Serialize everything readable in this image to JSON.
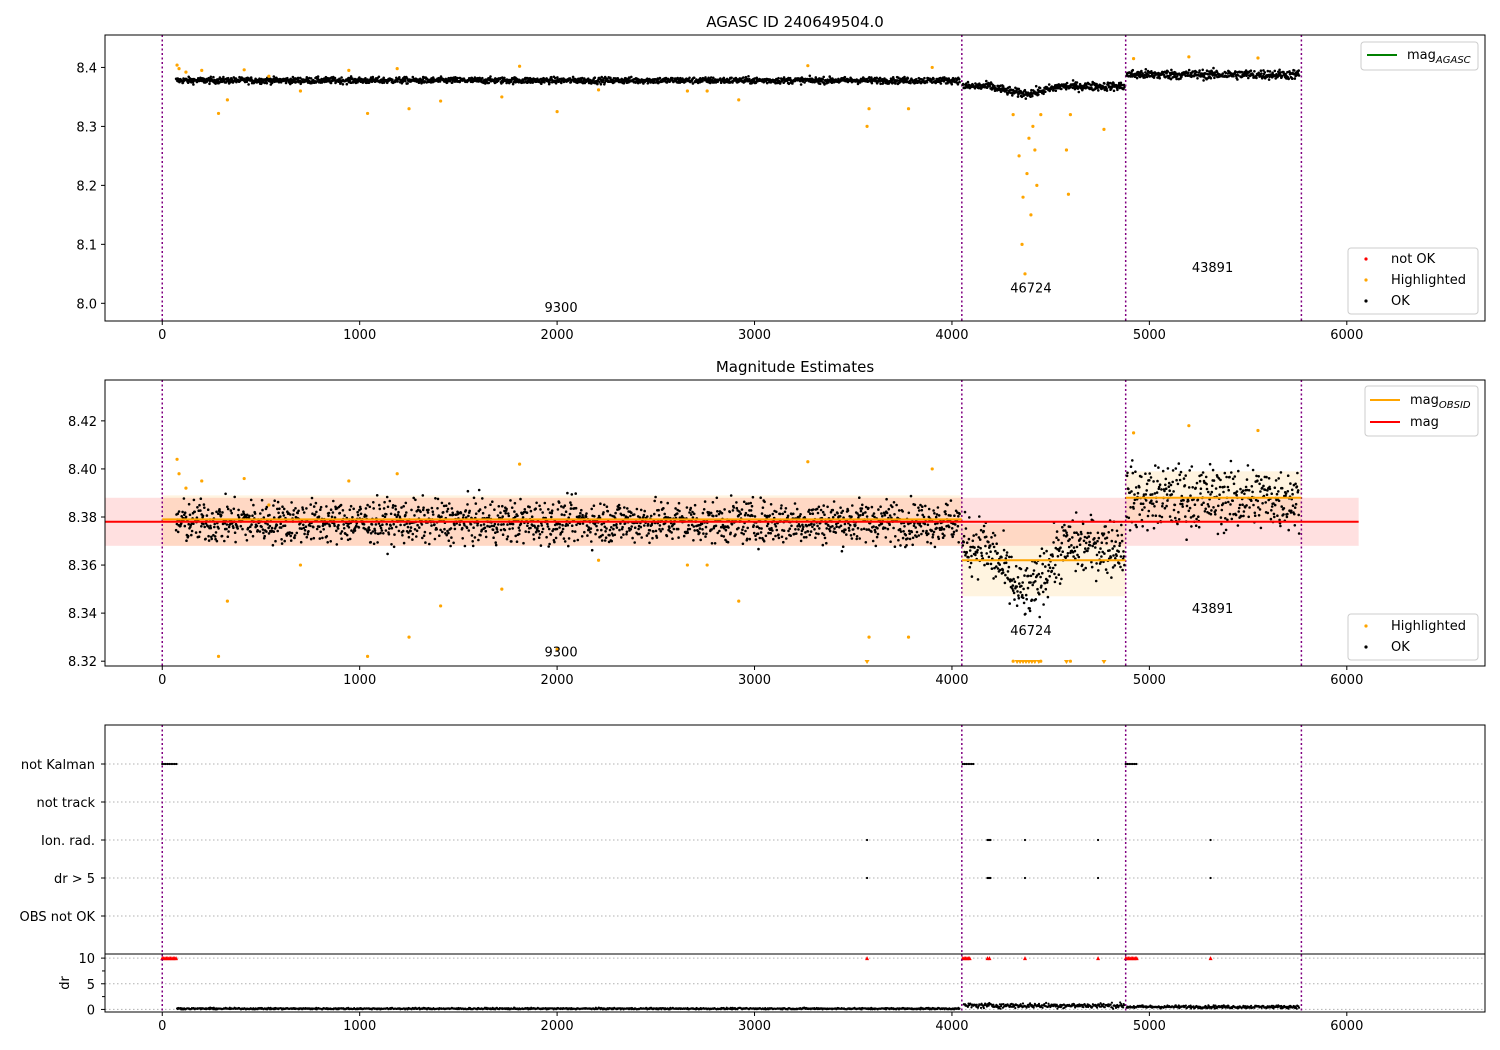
{
  "chart_data": [
    {
      "type": "scatter",
      "title": "AGASC ID 240649504.0",
      "xlim": [
        -290,
        6700
      ],
      "ylim": [
        7.97,
        8.455
      ],
      "x_ticks": [
        0,
        1000,
        2000,
        3000,
        4000,
        5000,
        6000
      ],
      "y_ticks": [
        8.0,
        8.1,
        8.2,
        8.3,
        8.4
      ],
      "y_tick_labels": [
        "8.0",
        "8.1",
        "8.2",
        "8.3",
        "8.4"
      ],
      "obsid_boundaries": [
        0,
        4050,
        4880,
        5770
      ],
      "obsid_labels": [
        {
          "text": "9300",
          "x": 2020,
          "y": 7.985
        },
        {
          "text": "46724",
          "x": 4400,
          "y": 8.018
        },
        {
          "text": "43891",
          "x": 5320,
          "y": 8.053
        }
      ],
      "segments": [
        {
          "x_start": 70,
          "x_end": 4040,
          "mean": 8.378,
          "scatter": 0.006,
          "dip": null
        },
        {
          "x_start": 4055,
          "x_end": 4875,
          "mean": 8.368,
          "scatter": 0.008,
          "dip": {
            "center": 4370,
            "width": 90,
            "depth": 0.07
          }
        },
        {
          "x_start": 4885,
          "x_end": 5760,
          "mean": 8.388,
          "scatter": 0.009,
          "dip": null
        }
      ],
      "highlighted_points": [
        [
          75,
          8.404
        ],
        [
          85,
          8.398
        ],
        [
          120,
          8.392
        ],
        [
          200,
          8.395
        ],
        [
          285,
          8.322
        ],
        [
          330,
          8.345
        ],
        [
          415,
          8.396
        ],
        [
          540,
          8.385
        ],
        [
          700,
          8.36
        ],
        [
          945,
          8.395
        ],
        [
          1040,
          8.322
        ],
        [
          1190,
          8.398
        ],
        [
          1250,
          8.33
        ],
        [
          1410,
          8.343
        ],
        [
          1720,
          8.35
        ],
        [
          1810,
          8.402
        ],
        [
          2000,
          8.325
        ],
        [
          2210,
          8.362
        ],
        [
          2660,
          8.36
        ],
        [
          2760,
          8.36
        ],
        [
          2920,
          8.345
        ],
        [
          3270,
          8.403
        ],
        [
          3570,
          8.3
        ],
        [
          3580,
          8.33
        ],
        [
          3780,
          8.33
        ],
        [
          3900,
          8.4
        ],
        [
          4310,
          8.32
        ],
        [
          4340,
          8.25
        ],
        [
          4355,
          8.1
        ],
        [
          4360,
          8.18
        ],
        [
          4370,
          8.05
        ],
        [
          4380,
          8.22
        ],
        [
          4390,
          8.28
        ],
        [
          4400,
          8.15
        ],
        [
          4410,
          8.3
        ],
        [
          4420,
          8.26
        ],
        [
          4430,
          8.2
        ],
        [
          4450,
          8.32
        ],
        [
          4580,
          8.26
        ],
        [
          4590,
          8.185
        ],
        [
          4600,
          8.32
        ],
        [
          4770,
          8.295
        ],
        [
          4920,
          8.415
        ],
        [
          5200,
          8.418
        ],
        [
          5550,
          8.416
        ]
      ],
      "legend_lines": [
        {
          "name": "mag_AGASC",
          "color": "#008000"
        }
      ],
      "legend_points": [
        {
          "name": "not OK",
          "color": "#ff0000"
        },
        {
          "name": "Highlighted",
          "color": "#ffa500"
        },
        {
          "name": "OK",
          "color": "#000000"
        }
      ]
    },
    {
      "type": "scatter",
      "title": "Magnitude Estimates",
      "xlim": [
        -290,
        6700
      ],
      "ylim": [
        8.318,
        8.437
      ],
      "x_ticks": [
        0,
        1000,
        2000,
        3000,
        4000,
        5000,
        6000
      ],
      "y_ticks": [
        8.32,
        8.34,
        8.36,
        8.38,
        8.4,
        8.42
      ],
      "y_tick_labels": [
        "8.32",
        "8.34",
        "8.36",
        "8.38",
        "8.40",
        "8.42"
      ],
      "obsid_boundaries": [
        0,
        4050,
        4880,
        5770
      ],
      "mag": {
        "value": 8.378,
        "band": [
          8.368,
          8.388
        ],
        "x_range": [
          -290,
          6060
        ],
        "color": "#ff0000"
      },
      "mag_obsid": [
        {
          "x_range": [
            0,
            4050
          ],
          "value": 8.379,
          "band": [
            8.368,
            8.389
          ]
        },
        {
          "x_range": [
            4050,
            4880
          ],
          "value": 8.362,
          "band": [
            8.347,
            8.377
          ]
        },
        {
          "x_range": [
            4880,
            5770
          ],
          "value": 8.388,
          "band": [
            8.378,
            8.399
          ]
        }
      ],
      "obsid_labels": [
        {
          "text": "9300",
          "x": 2020,
          "y": 8.322
        },
        {
          "text": "46724",
          "x": 4400,
          "y": 8.331
        },
        {
          "text": "43891",
          "x": 5320,
          "y": 8.34
        }
      ],
      "clipped_points_x": [
        3570,
        4330,
        4345,
        4360,
        4375,
        4390,
        4405,
        4420,
        4440,
        4580,
        4770
      ],
      "legend_lines": [
        {
          "name": "mag_OBSID",
          "color": "#ffa500"
        },
        {
          "name": "mag",
          "color": "#ff0000"
        }
      ],
      "legend_points": [
        {
          "name": "Highlighted",
          "color": "#ffa500"
        },
        {
          "name": "OK",
          "color": "#000000"
        }
      ]
    },
    {
      "type": "scatter",
      "xlim": [
        -290,
        6700
      ],
      "x_ticks": [
        0,
        1000,
        2000,
        3000,
        4000,
        5000,
        6000
      ],
      "obsid_boundaries": [
        0,
        4050,
        4880,
        5770
      ],
      "flag_rows": [
        "not Kalman",
        "not track",
        "Ion. rad.",
        "dr > 5",
        "OBS not OK"
      ],
      "flags": {
        "not Kalman": [
          [
            0,
            75
          ],
          [
            4055,
            4115
          ],
          [
            4880,
            4940
          ]
        ],
        "Ion. rad.": [
          3570,
          4180,
          4185,
          4190,
          4195,
          4370,
          4740,
          5310
        ],
        "dr > 5": [
          3570,
          4180,
          4185,
          4190,
          4195,
          4370,
          4740,
          5310
        ]
      },
      "dr_panel": {
        "ylabel": "dr",
        "y_ticks": [
          0,
          5,
          10
        ],
        "ylim": [
          -0.5,
          10.8
        ],
        "segments": [
          {
            "x_start": 75,
            "x_end": 4040,
            "base": 0.15,
            "scatter": 0.08
          },
          {
            "x_start": 4060,
            "x_end": 4875,
            "base": 0.75,
            "scatter": 0.25
          },
          {
            "x_start": 4885,
            "x_end": 5760,
            "base": 0.5,
            "scatter": 0.15
          }
        ],
        "clipped_red": [
          [
            0,
            75
          ],
          [
            4055,
            4095
          ],
          [
            4880,
            4940
          ],
          [
            3570
          ],
          [
            4180
          ],
          [
            4190
          ],
          [
            4370
          ],
          [
            4740
          ],
          [
            5310
          ]
        ]
      }
    }
  ]
}
